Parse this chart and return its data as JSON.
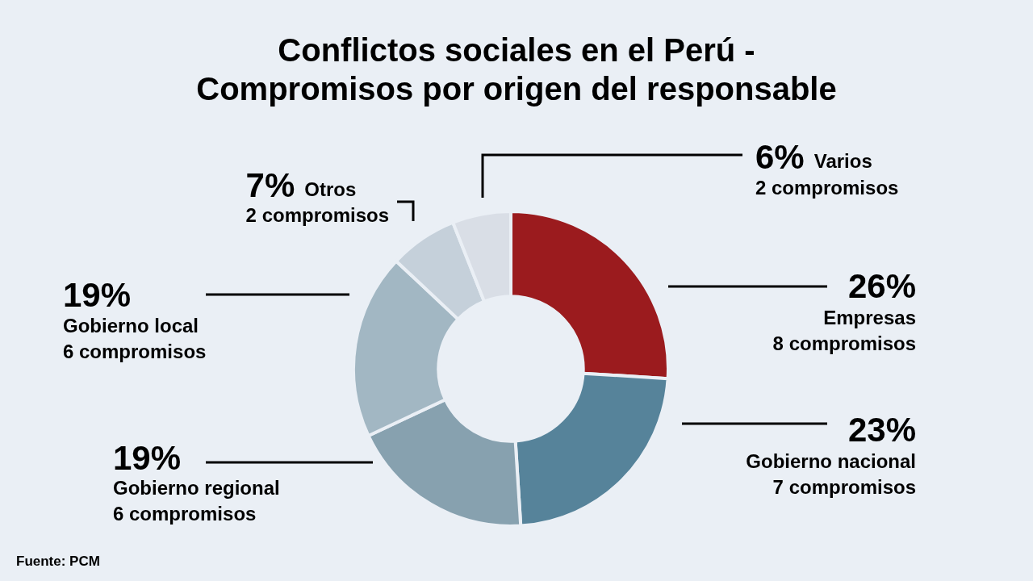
{
  "chart_data": {
    "type": "donut",
    "title": "Conflictos sociales en el Perú -\nCompromisos por origen del responsable",
    "categories": [
      "Empresas",
      "Gobierno nacional",
      "Gobierno regional",
      "Gobierno local",
      "Otros",
      "Varios"
    ],
    "values": [
      26,
      23,
      19,
      19,
      7,
      6
    ],
    "colors": [
      "#9b1b1e",
      "#56839a",
      "#87a1af",
      "#a2b7c3",
      "#c5d0da",
      "#d9dee6"
    ],
    "value_labels": [
      "26%",
      "23%",
      "19%",
      "19%",
      "7%",
      "6%"
    ],
    "annotations": [
      "8 compromisos",
      "7 compromisos",
      "6 compromisos",
      "6 compromisos",
      "2 compromisos",
      "2 compromisos",
      "Fuente: PCM"
    ],
    "legend": false
  }
}
